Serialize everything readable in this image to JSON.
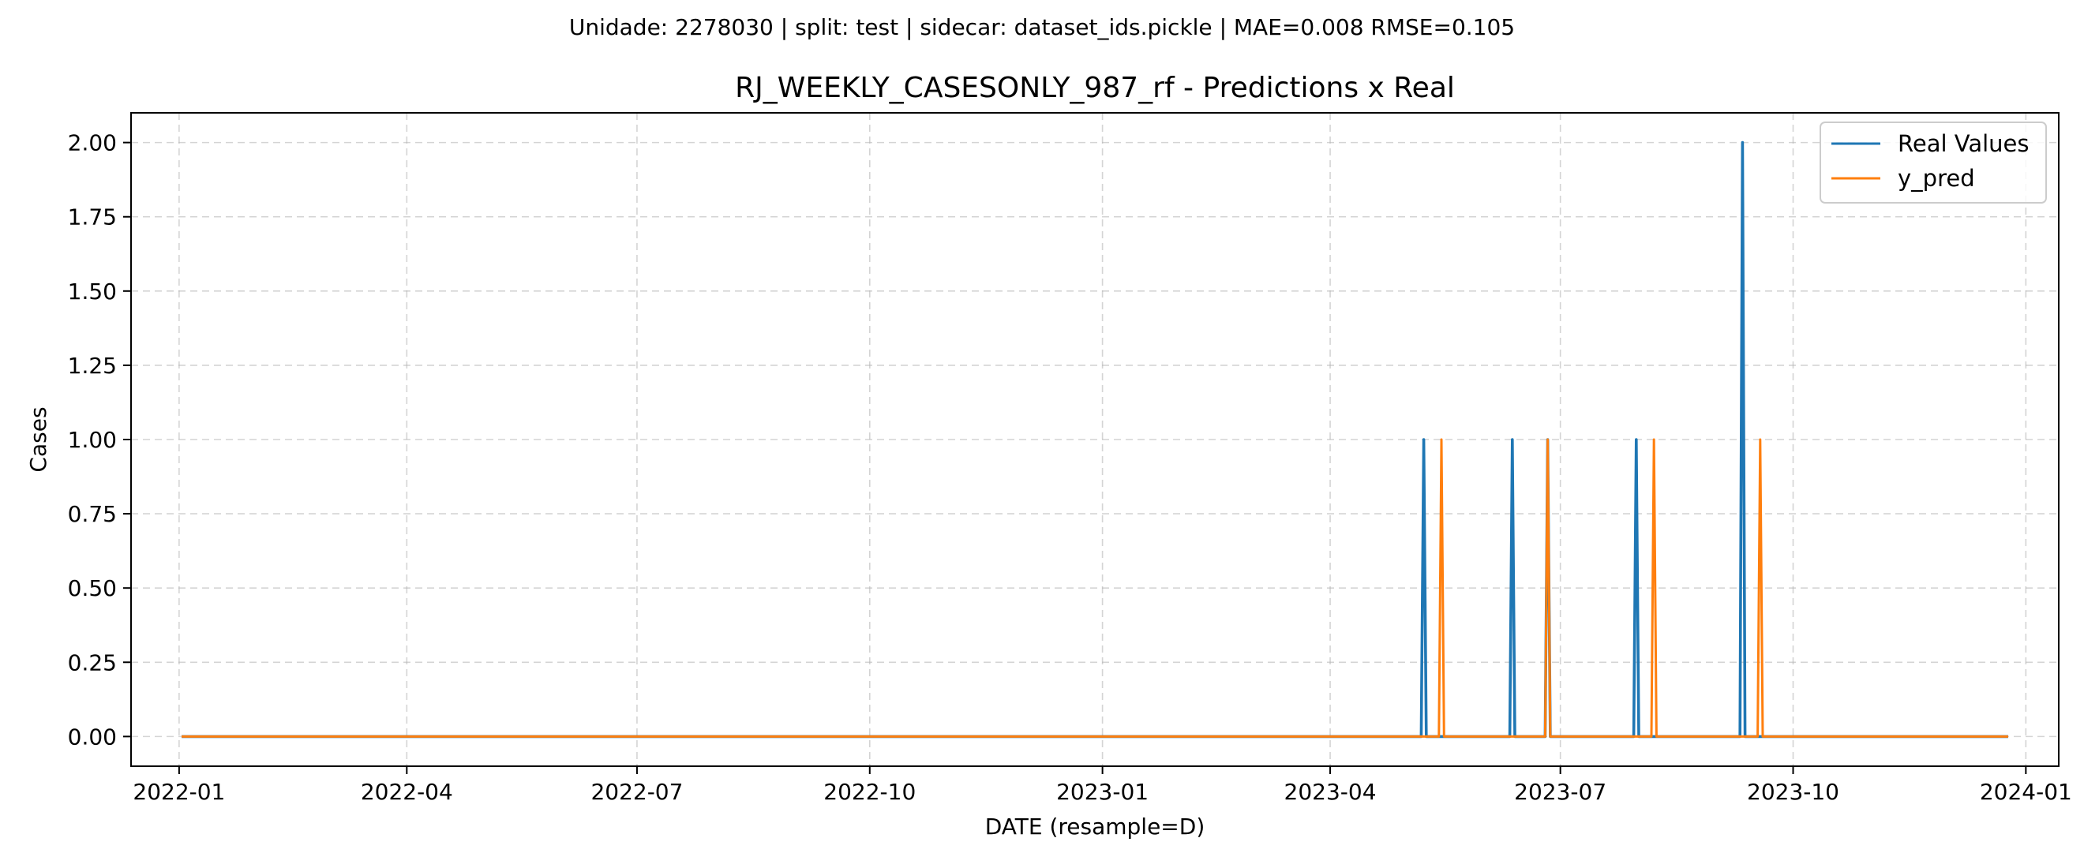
{
  "suptitle": "Unidade: 2278030 | split: test | sidecar: dataset_ids.pickle | MAE=0.008  RMSE=0.105",
  "chart_data": {
    "type": "line",
    "title": "RJ_WEEKLY_CASESONLY_987_rf - Predictions x Real",
    "xlabel": "DATE (resample=D)",
    "ylabel": "Cases",
    "x_axis": "date",
    "xlim": [
      "2021-12-13",
      "2024-01-14"
    ],
    "ylim": [
      -0.1,
      2.1
    ],
    "x_ticks": [
      "2022-01",
      "2022-04",
      "2022-07",
      "2022-10",
      "2023-01",
      "2023-04",
      "2023-07",
      "2023-10",
      "2024-01"
    ],
    "y_ticks": [
      "0.00",
      "0.25",
      "0.50",
      "0.75",
      "1.00",
      "1.25",
      "1.50",
      "1.75",
      "2.00"
    ],
    "grid": true,
    "legend_position": "top-right",
    "series": [
      {
        "name": "Real Values",
        "color": "#1f77b4",
        "points": [
          [
            "2022-01-02",
            0
          ],
          [
            "2023-05-07",
            0
          ],
          [
            "2023-05-08",
            1
          ],
          [
            "2023-05-09",
            0
          ],
          [
            "2023-06-11",
            0
          ],
          [
            "2023-06-12",
            1
          ],
          [
            "2023-06-13",
            0
          ],
          [
            "2023-06-25",
            0
          ],
          [
            "2023-06-26",
            1
          ],
          [
            "2023-06-27",
            0
          ],
          [
            "2023-07-30",
            0
          ],
          [
            "2023-07-31",
            1
          ],
          [
            "2023-08-01",
            0
          ],
          [
            "2023-09-10",
            0
          ],
          [
            "2023-09-11",
            2
          ],
          [
            "2023-09-12",
            0
          ],
          [
            "2023-12-25",
            0
          ]
        ]
      },
      {
        "name": "y_pred",
        "color": "#ff7f0e",
        "points": [
          [
            "2022-01-02",
            0
          ],
          [
            "2023-05-14",
            0
          ],
          [
            "2023-05-15",
            1
          ],
          [
            "2023-05-16",
            0
          ],
          [
            "2023-06-25",
            0
          ],
          [
            "2023-06-26",
            1
          ],
          [
            "2023-06-27",
            0
          ],
          [
            "2023-08-06",
            0
          ],
          [
            "2023-08-07",
            1
          ],
          [
            "2023-08-08",
            0
          ],
          [
            "2023-09-17",
            0
          ],
          [
            "2023-09-18",
            1
          ],
          [
            "2023-09-19",
            0
          ],
          [
            "2023-12-25",
            0
          ]
        ]
      }
    ]
  }
}
